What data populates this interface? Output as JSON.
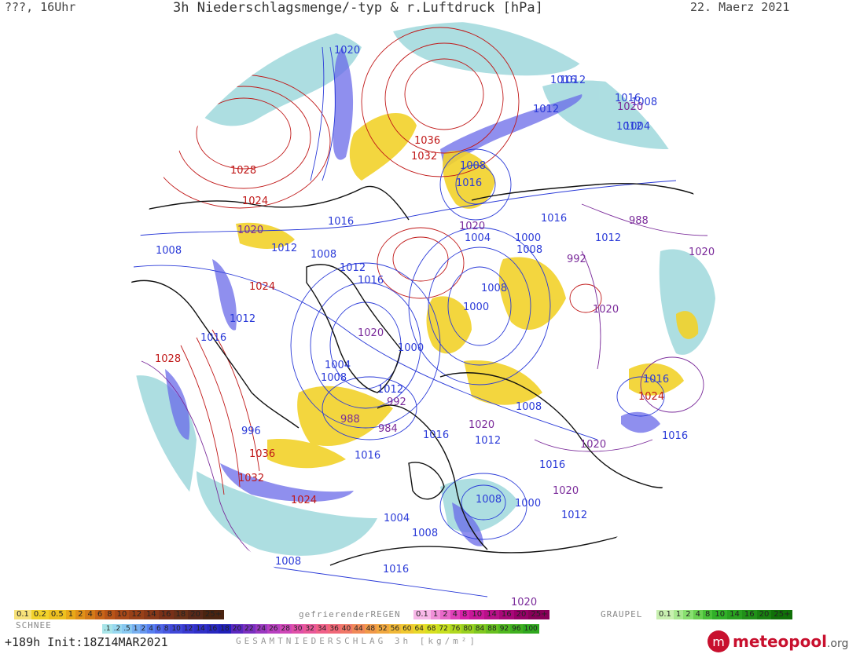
{
  "header": {
    "left": "???, 16Uhr",
    "title": "3h Niederschlagsmenge/-typ & r.Luftdruck [hPa]",
    "date": "22. Maerz 2021"
  },
  "colors": {
    "high_isobar": "#c01818",
    "low_isobar": "#2a3ad8",
    "mid_isobar": "#7a2a9a",
    "snow": "#9fd8dc",
    "rain_yellow": "#f2d22a",
    "heavy_precip": "#5a5ae8",
    "coast": "#111111"
  },
  "pressure_labels": [
    {
      "text": "1020",
      "color": "low"
    },
    {
      "text": "1016",
      "color": "low"
    },
    {
      "text": "1012",
      "color": "low"
    },
    {
      "text": "1036",
      "color": "high"
    },
    {
      "text": "1032",
      "color": "high"
    },
    {
      "text": "1028",
      "color": "high"
    },
    {
      "text": "1024",
      "color": "high"
    },
    {
      "text": "1020",
      "color": "mid"
    },
    {
      "text": "1016",
      "color": "low"
    },
    {
      "text": "1008",
      "color": "low"
    },
    {
      "text": "1012",
      "color": "low"
    },
    {
      "text": "1008",
      "color": "low"
    },
    {
      "text": "1012",
      "color": "low"
    },
    {
      "text": "1016",
      "color": "low"
    },
    {
      "text": "1024",
      "color": "high"
    },
    {
      "text": "1012",
      "color": "low"
    },
    {
      "text": "1016",
      "color": "low"
    },
    {
      "text": "1028",
      "color": "high"
    },
    {
      "text": "1020",
      "color": "mid"
    },
    {
      "text": "1004",
      "color": "low"
    },
    {
      "text": "1008",
      "color": "low"
    },
    {
      "text": "1000",
      "color": "low"
    },
    {
      "text": "1012",
      "color": "low"
    },
    {
      "text": "992",
      "color": "mid"
    },
    {
      "text": "988",
      "color": "mid"
    },
    {
      "text": "984",
      "color": "mid"
    },
    {
      "text": "996",
      "color": "low"
    },
    {
      "text": "1036",
      "color": "high"
    },
    {
      "text": "1032",
      "color": "high"
    },
    {
      "text": "1024",
      "color": "high"
    },
    {
      "text": "1016",
      "color": "low"
    },
    {
      "text": "1008",
      "color": "low"
    },
    {
      "text": "1016",
      "color": "low"
    },
    {
      "text": "1020",
      "color": "mid"
    },
    {
      "text": "1016",
      "color": "low"
    },
    {
      "text": "1004",
      "color": "low"
    },
    {
      "text": "1000",
      "color": "low"
    },
    {
      "text": "1008",
      "color": "low"
    },
    {
      "text": "1012",
      "color": "low"
    },
    {
      "text": "1008",
      "color": "low"
    },
    {
      "text": "1000",
      "color": "low"
    },
    {
      "text": "992",
      "color": "mid"
    },
    {
      "text": "988",
      "color": "mid"
    },
    {
      "text": "1012",
      "color": "low"
    },
    {
      "text": "1016",
      "color": "low"
    },
    {
      "text": "1012",
      "color": "low"
    },
    {
      "text": "1020",
      "color": "mid"
    },
    {
      "text": "1020",
      "color": "mid"
    },
    {
      "text": "1016",
      "color": "low"
    },
    {
      "text": "1024",
      "color": "high"
    },
    {
      "text": "1016",
      "color": "low"
    },
    {
      "text": "1020",
      "color": "mid"
    },
    {
      "text": "1016",
      "color": "low"
    },
    {
      "text": "1020",
      "color": "mid"
    },
    {
      "text": "1012",
      "color": "low"
    },
    {
      "text": "1008",
      "color": "low"
    },
    {
      "text": "1020",
      "color": "mid"
    },
    {
      "text": "1016",
      "color": "low"
    },
    {
      "text": "1012",
      "color": "low"
    },
    {
      "text": "1008",
      "color": "low"
    },
    {
      "text": "1000",
      "color": "low"
    },
    {
      "text": "1004",
      "color": "low"
    },
    {
      "text": "1008",
      "color": "low"
    },
    {
      "text": "1016",
      "color": "low"
    },
    {
      "text": "1008",
      "color": "low"
    },
    {
      "text": "1020",
      "color": "mid"
    },
    {
      "text": "1008",
      "color": "low"
    },
    {
      "text": "1004",
      "color": "low"
    },
    {
      "text": "1020",
      "color": "mid"
    }
  ],
  "legend": {
    "schnee_label": "SCHNEE",
    "schnee_values": [
      "0.1",
      "0.2",
      "0.5",
      "1",
      "2",
      "4",
      "6",
      "8",
      "10",
      "12",
      "14",
      "16",
      "18",
      "20",
      "25+"
    ],
    "regen_label": "gefrierenderREGEN",
    "regen_values": [
      "0.1",
      "1",
      "2",
      "4",
      "8",
      "10",
      "14",
      "16",
      "20",
      "25+"
    ],
    "graupel_label": "GRAUPEL",
    "graupel_values": [
      "0.1",
      "1",
      "2",
      "4",
      "8",
      "10",
      "14",
      "16",
      "20",
      "25+"
    ],
    "total_values": [
      ".1",
      ".2",
      ".5",
      "1",
      "2",
      "4",
      "6",
      "8",
      "10",
      "12",
      "14",
      "16",
      "18",
      "20",
      "22",
      "24",
      "26",
      "28",
      "30",
      "32",
      "34",
      "36",
      "40",
      "44",
      "48",
      "52",
      "56",
      "60",
      "64",
      "68",
      "72",
      "76",
      "80",
      "84",
      "88",
      "92",
      "96",
      "100"
    ],
    "total_label": "GESAMTNIEDERSCHLAG 3h [kg/m²]"
  },
  "footer": {
    "init": "+189h Init:18Z14MAR2021",
    "brand": "meteopool",
    "brand_tld": ".org"
  }
}
